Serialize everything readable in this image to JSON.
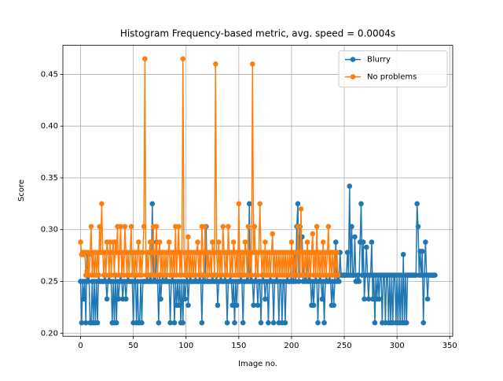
{
  "chart_data": {
    "type": "line",
    "title": "Histogram Frequency-based metric, avg. speed = 0.0004s",
    "xlabel": "Image no.",
    "ylabel": "Score",
    "xlim": [
      -16.8,
      352.8
    ],
    "ylim": [
      0.197,
      0.478
    ],
    "xticks": [
      0,
      50,
      100,
      150,
      200,
      250,
      300,
      350
    ],
    "yticks": [
      {
        "value": 0.2,
        "label": "0.20"
      },
      0.25,
      {
        "value": 0.3,
        "label": "0.30"
      },
      0.35,
      {
        "value": 0.4,
        "label": "0.40"
      },
      0.45
    ],
    "grid": true,
    "legend": "upper right",
    "marker": "o",
    "series": [
      {
        "name": "Blurry",
        "color": "#1f77b4",
        "values": [
          0.25,
          0.21,
          0.25,
          0.233,
          0.25,
          0.21,
          0.278,
          0.25,
          0.256,
          0.21,
          0.21,
          0.25,
          0.21,
          0.25,
          0.21,
          0.25,
          0.21,
          0.256,
          0.25,
          0.25,
          0.25,
          0.25,
          0.25,
          0.256,
          0.25,
          0.233,
          0.25,
          0.256,
          0.25,
          0.25,
          0.21,
          0.25,
          0.21,
          0.256,
          0.21,
          0.25,
          0.233,
          0.25,
          0.256,
          0.25,
          0.233,
          0.25,
          0.25,
          0.233,
          0.25,
          0.256,
          0.25,
          0.25,
          0.25,
          0.25,
          0.21,
          0.25,
          0.256,
          0.21,
          0.25,
          0.21,
          0.21,
          0.25,
          0.21,
          0.25,
          0.25,
          0.25,
          0.25,
          0.256,
          0.25,
          0.25,
          0.256,
          0.25,
          0.325,
          0.25,
          0.256,
          0.25,
          0.288,
          0.25,
          0.21,
          0.256,
          0.233,
          0.25,
          0.256,
          0.25,
          0.25,
          0.256,
          0.25,
          0.25,
          0.25,
          0.21,
          0.25,
          0.256,
          0.25,
          0.21,
          0.25,
          0.227,
          0.25,
          0.227,
          0.25,
          0.21,
          0.25,
          0.21,
          0.25,
          0.233,
          0.25,
          0.256,
          0.227,
          0.25,
          0.256,
          0.25,
          0.25,
          0.25,
          0.25,
          0.256,
          0.25,
          0.25,
          0.25,
          0.256,
          0.25,
          0.21,
          0.256,
          0.25,
          0.25,
          0.303,
          0.25,
          0.25,
          0.25,
          0.25,
          0.25,
          0.256,
          0.25,
          0.25,
          0.25,
          0.256,
          0.227,
          0.25,
          0.25,
          0.256,
          0.25,
          0.25,
          0.25,
          0.256,
          0.25,
          0.21,
          0.25,
          0.25,
          0.256,
          0.25,
          0.227,
          0.25,
          0.21,
          0.25,
          0.227,
          0.25,
          0.25,
          0.25,
          0.256,
          0.25,
          0.21,
          0.25,
          0.25,
          0.25,
          0.256,
          0.25,
          0.325,
          0.25,
          0.256,
          0.25,
          0.227,
          0.25,
          0.256,
          0.25,
          0.227,
          0.25,
          0.25,
          0.21,
          0.25,
          0.256,
          0.25,
          0.233,
          0.25,
          0.25,
          0.21,
          0.25,
          0.256,
          0.25,
          0.25,
          0.21,
          0.25,
          0.25,
          0.256,
          0.25,
          0.21,
          0.25,
          0.25,
          0.21,
          0.25,
          0.25,
          0.21,
          0.25,
          0.256,
          0.25,
          0.25,
          0.25,
          0.256,
          0.25,
          0.25,
          0.278,
          0.25,
          0.303,
          0.325,
          0.25,
          0.303,
          0.293,
          0.293,
          0.25,
          0.25,
          0.256,
          0.25,
          0.278,
          0.25,
          0.256,
          0.25,
          0.227,
          0.25,
          0.227,
          0.25,
          0.256,
          0.25,
          0.21,
          0.25,
          0.256,
          0.25,
          0.233,
          0.25,
          0.21,
          0.25,
          0.256,
          0.25,
          0.25,
          0.256,
          0.25,
          0.227,
          0.25,
          0.227,
          0.25,
          0.288,
          0.25,
          0.256,
          0.25,
          0.278,
          0.256,
          0.256,
          0.256,
          0.256,
          0.256,
          0.256,
          0.278,
          0.256,
          0.342,
          0.256,
          0.303,
          0.256,
          0.256,
          0.293,
          0.25,
          0.25,
          0.256,
          0.25,
          0.288,
          0.325,
          0.256,
          0.288,
          0.233,
          0.256,
          0.283,
          0.256,
          0.233,
          0.256,
          0.256,
          0.288,
          0.233,
          0.256,
          0.21,
          0.256,
          0.233,
          0.256,
          0.233,
          0.256,
          0.256,
          0.21,
          0.256,
          0.256,
          0.21,
          0.256,
          0.256,
          0.21,
          0.256,
          0.21,
          0.256,
          0.21,
          0.256,
          0.256,
          0.21,
          0.256,
          0.21,
          0.256,
          0.21,
          0.256,
          0.21,
          0.276,
          0.21,
          0.256,
          0.21,
          0.256,
          0.256,
          0.256,
          0.256,
          0.256,
          0.256,
          0.256,
          0.256,
          0.256,
          0.325,
          0.303,
          0.256,
          0.279,
          0.256,
          0.279,
          0.21,
          0.256,
          0.288,
          0.256,
          0.233,
          0.256,
          0.256,
          0.256,
          0.256,
          0.256,
          0.256,
          0.256
        ]
      },
      {
        "name": "No problems",
        "color": "#ff7f0e",
        "values": [
          0.288,
          0.276,
          0.278,
          0.276,
          0.278,
          0.256,
          0.26,
          0.278,
          0.256,
          0.276,
          0.303,
          0.256,
          0.278,
          0.256,
          0.278,
          0.256,
          0.278,
          0.256,
          0.303,
          0.278,
          0.325,
          0.278,
          0.256,
          0.278,
          0.256,
          0.288,
          0.278,
          0.256,
          0.288,
          0.256,
          0.278,
          0.288,
          0.256,
          0.288,
          0.278,
          0.303,
          0.256,
          0.278,
          0.303,
          0.256,
          0.278,
          0.256,
          0.303,
          0.278,
          0.256,
          0.278,
          0.256,
          0.278,
          0.303,
          0.256,
          0.278,
          0.256,
          0.278,
          0.256,
          0.278,
          0.288,
          0.256,
          0.278,
          0.256,
          0.278,
          0.303,
          0.465,
          0.256,
          0.278,
          0.256,
          0.278,
          0.288,
          0.256,
          0.278,
          0.303,
          0.256,
          0.278,
          0.303,
          0.256,
          0.278,
          0.288,
          0.256,
          0.278,
          0.256,
          0.278,
          0.256,
          0.278,
          0.256,
          0.278,
          0.288,
          0.256,
          0.278,
          0.256,
          0.278,
          0.256,
          0.303,
          0.256,
          0.278,
          0.303,
          0.256,
          0.278,
          0.256,
          0.465,
          0.278,
          0.256,
          0.278,
          0.256,
          0.293,
          0.256,
          0.278,
          0.256,
          0.278,
          0.256,
          0.278,
          0.256,
          0.278,
          0.288,
          0.256,
          0.278,
          0.256,
          0.303,
          0.278,
          0.256,
          0.303,
          0.278,
          0.256,
          0.278,
          0.256,
          0.278,
          0.256,
          0.288,
          0.278,
          0.256,
          0.46,
          0.278,
          0.256,
          0.288,
          0.256,
          0.278,
          0.256,
          0.303,
          0.278,
          0.256,
          0.278,
          0.256,
          0.303,
          0.278,
          0.256,
          0.278,
          0.256,
          0.288,
          0.278,
          0.256,
          0.278,
          0.256,
          0.325,
          0.256,
          0.278,
          0.256,
          0.278,
          0.256,
          0.288,
          0.278,
          0.256,
          0.303,
          0.256,
          0.278,
          0.256,
          0.46,
          0.278,
          0.303,
          0.256,
          0.278,
          0.256,
          0.278,
          0.325,
          0.278,
          0.256,
          0.278,
          0.256,
          0.288,
          0.256,
          0.278,
          0.256,
          0.278,
          0.256,
          0.278,
          0.296,
          0.256,
          0.278,
          0.256,
          0.278,
          0.256,
          0.278,
          0.256,
          0.278,
          0.256,
          0.278,
          0.256,
          0.278,
          0.256,
          0.278,
          0.256,
          0.278,
          0.256,
          0.288,
          0.256,
          0.278,
          0.256,
          0.278,
          0.256,
          0.303,
          0.278,
          0.256,
          0.32,
          0.256,
          0.278,
          0.256,
          0.278,
          0.256,
          0.288,
          0.256,
          0.278,
          0.256,
          0.278,
          0.296,
          0.256,
          0.278,
          0.256,
          0.303,
          0.256,
          0.278,
          0.256,
          0.278,
          0.256,
          0.288,
          0.256,
          0.278,
          0.256,
          0.278,
          0.303,
          0.256,
          0.278,
          0.256,
          0.278,
          0.256,
          0.278,
          0.256,
          0.278,
          0.256
        ]
      }
    ]
  }
}
